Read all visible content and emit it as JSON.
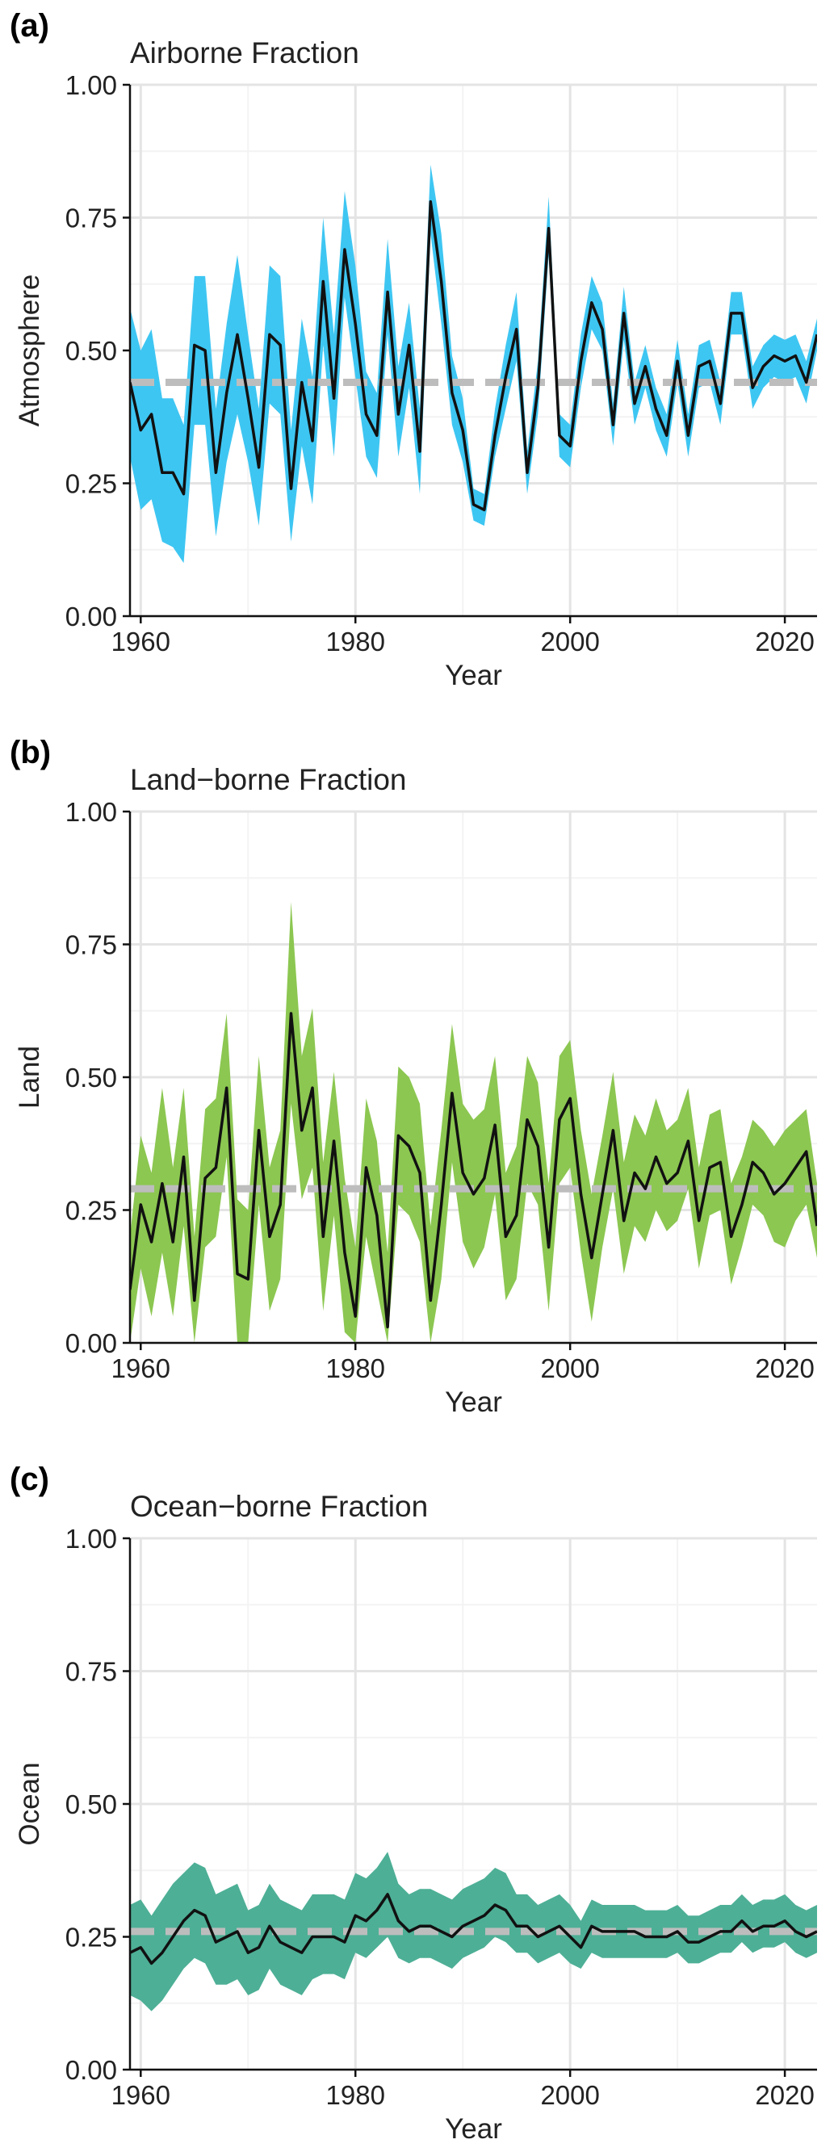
{
  "chart_data": [
    {
      "type": "line",
      "panel_label": "(a)",
      "title": "Airborne Fraction",
      "xlabel": "Year",
      "ylabel": "Atmosphere",
      "xlim": [
        1959,
        2023
      ],
      "ylim": [
        0,
        1
      ],
      "xticks": [
        1960,
        1980,
        2000,
        2020
      ],
      "yticks": [
        "0.00",
        "0.25",
        "0.50",
        "0.75",
        "1.00"
      ],
      "grid": true,
      "band_color": "#3ec6f2",
      "line_color": "#111111",
      "mean_line": 0.44,
      "mean_color": "#bdbdbd",
      "x": [
        1959,
        1960,
        1961,
        1962,
        1963,
        1964,
        1965,
        1966,
        1967,
        1968,
        1969,
        1970,
        1971,
        1972,
        1973,
        1974,
        1975,
        1976,
        1977,
        1978,
        1979,
        1980,
        1981,
        1982,
        1983,
        1984,
        1985,
        1986,
        1987,
        1988,
        1989,
        1990,
        1991,
        1992,
        1993,
        1994,
        1995,
        1996,
        1997,
        1998,
        1999,
        2000,
        2001,
        2002,
        2003,
        2004,
        2005,
        2006,
        2007,
        2008,
        2009,
        2010,
        2011,
        2012,
        2013,
        2014,
        2015,
        2016,
        2017,
        2018,
        2019,
        2020,
        2021,
        2022,
        2023
      ],
      "values": [
        0.44,
        0.35,
        0.38,
        0.27,
        0.27,
        0.23,
        0.51,
        0.5,
        0.27,
        0.42,
        0.53,
        0.41,
        0.28,
        0.53,
        0.51,
        0.24,
        0.44,
        0.33,
        0.63,
        0.41,
        0.69,
        0.55,
        0.38,
        0.34,
        0.61,
        0.38,
        0.51,
        0.31,
        0.78,
        0.63,
        0.42,
        0.35,
        0.21,
        0.2,
        0.34,
        0.45,
        0.54,
        0.27,
        0.43,
        0.73,
        0.34,
        0.32,
        0.48,
        0.59,
        0.54,
        0.36,
        0.57,
        0.4,
        0.47,
        0.39,
        0.34,
        0.48,
        0.34,
        0.47,
        0.48,
        0.4,
        0.57,
        0.57,
        0.43,
        0.47,
        0.49,
        0.48,
        0.49,
        0.44,
        0.53
      ],
      "lower": [
        0.3,
        0.2,
        0.22,
        0.14,
        0.13,
        0.1,
        0.36,
        0.36,
        0.15,
        0.29,
        0.38,
        0.29,
        0.17,
        0.4,
        0.38,
        0.14,
        0.32,
        0.21,
        0.51,
        0.3,
        0.6,
        0.45,
        0.3,
        0.26,
        0.53,
        0.3,
        0.43,
        0.23,
        0.72,
        0.55,
        0.36,
        0.29,
        0.18,
        0.17,
        0.3,
        0.39,
        0.48,
        0.23,
        0.38,
        0.68,
        0.3,
        0.28,
        0.43,
        0.54,
        0.5,
        0.32,
        0.52,
        0.36,
        0.43,
        0.35,
        0.3,
        0.44,
        0.3,
        0.43,
        0.44,
        0.36,
        0.53,
        0.53,
        0.39,
        0.43,
        0.45,
        0.44,
        0.45,
        0.4,
        0.5
      ],
      "upper": [
        0.58,
        0.5,
        0.54,
        0.41,
        0.41,
        0.36,
        0.64,
        0.64,
        0.39,
        0.55,
        0.68,
        0.53,
        0.39,
        0.66,
        0.64,
        0.35,
        0.56,
        0.45,
        0.75,
        0.53,
        0.8,
        0.66,
        0.46,
        0.42,
        0.71,
        0.47,
        0.59,
        0.39,
        0.85,
        0.72,
        0.49,
        0.41,
        0.24,
        0.23,
        0.39,
        0.51,
        0.61,
        0.31,
        0.48,
        0.79,
        0.38,
        0.36,
        0.53,
        0.64,
        0.59,
        0.4,
        0.62,
        0.44,
        0.51,
        0.43,
        0.38,
        0.52,
        0.38,
        0.51,
        0.52,
        0.44,
        0.61,
        0.61,
        0.47,
        0.51,
        0.53,
        0.52,
        0.53,
        0.48,
        0.56
      ]
    },
    {
      "type": "line",
      "panel_label": "(b)",
      "title": "Land−borne Fraction",
      "xlabel": "Year",
      "ylabel": "Land",
      "xlim": [
        1959,
        2023
      ],
      "ylim": [
        0,
        1
      ],
      "xticks": [
        1960,
        1980,
        2000,
        2020
      ],
      "yticks": [
        "0.00",
        "0.25",
        "0.50",
        "0.75",
        "1.00"
      ],
      "grid": true,
      "band_color": "#8cc751",
      "line_color": "#111111",
      "mean_line": 0.29,
      "mean_color": "#bdbdbd",
      "x": [
        1959,
        1960,
        1961,
        1962,
        1963,
        1964,
        1965,
        1966,
        1967,
        1968,
        1969,
        1970,
        1971,
        1972,
        1973,
        1974,
        1975,
        1976,
        1977,
        1978,
        1979,
        1980,
        1981,
        1982,
        1983,
        1984,
        1985,
        1986,
        1987,
        1988,
        1989,
        1990,
        1991,
        1992,
        1993,
        1994,
        1995,
        1996,
        1997,
        1998,
        1999,
        2000,
        2001,
        2002,
        2003,
        2004,
        2005,
        2006,
        2007,
        2008,
        2009,
        2010,
        2011,
        2012,
        2013,
        2014,
        2015,
        2016,
        2017,
        2018,
        2019,
        2020,
        2021,
        2022,
        2023
      ],
      "values": [
        0.1,
        0.26,
        0.19,
        0.3,
        0.19,
        0.35,
        0.08,
        0.31,
        0.33,
        0.48,
        0.13,
        0.12,
        0.4,
        0.2,
        0.26,
        0.62,
        0.4,
        0.48,
        0.2,
        0.38,
        0.17,
        0.05,
        0.33,
        0.24,
        0.03,
        0.39,
        0.37,
        0.32,
        0.08,
        0.26,
        0.47,
        0.32,
        0.28,
        0.31,
        0.41,
        0.2,
        0.24,
        0.42,
        0.37,
        0.18,
        0.42,
        0.46,
        0.28,
        0.16,
        0.28,
        0.4,
        0.23,
        0.32,
        0.29,
        0.35,
        0.3,
        0.32,
        0.38,
        0.23,
        0.33,
        0.34,
        0.2,
        0.26,
        0.34,
        0.32,
        0.28,
        0.3,
        0.33,
        0.36,
        0.22
      ],
      "lower": [
        0.0,
        0.14,
        0.05,
        0.17,
        0.05,
        0.22,
        0.0,
        0.18,
        0.2,
        0.35,
        0.0,
        0.0,
        0.26,
        0.06,
        0.12,
        0.45,
        0.27,
        0.33,
        0.06,
        0.24,
        0.02,
        0.0,
        0.2,
        0.1,
        0.0,
        0.26,
        0.24,
        0.19,
        0.0,
        0.12,
        0.34,
        0.19,
        0.14,
        0.18,
        0.28,
        0.08,
        0.12,
        0.3,
        0.26,
        0.06,
        0.3,
        0.33,
        0.17,
        0.04,
        0.18,
        0.29,
        0.13,
        0.22,
        0.19,
        0.25,
        0.21,
        0.23,
        0.29,
        0.14,
        0.24,
        0.25,
        0.11,
        0.18,
        0.26,
        0.24,
        0.19,
        0.18,
        0.23,
        0.26,
        0.16
      ],
      "upper": [
        0.2,
        0.39,
        0.32,
        0.48,
        0.33,
        0.48,
        0.2,
        0.44,
        0.46,
        0.62,
        0.27,
        0.25,
        0.54,
        0.33,
        0.4,
        0.83,
        0.54,
        0.63,
        0.34,
        0.51,
        0.31,
        0.18,
        0.46,
        0.38,
        0.17,
        0.52,
        0.5,
        0.45,
        0.22,
        0.4,
        0.6,
        0.45,
        0.42,
        0.44,
        0.54,
        0.32,
        0.37,
        0.54,
        0.49,
        0.3,
        0.54,
        0.57,
        0.4,
        0.28,
        0.39,
        0.51,
        0.34,
        0.43,
        0.39,
        0.46,
        0.4,
        0.42,
        0.48,
        0.33,
        0.43,
        0.44,
        0.3,
        0.35,
        0.42,
        0.4,
        0.37,
        0.4,
        0.42,
        0.44,
        0.3
      ]
    },
    {
      "type": "line",
      "panel_label": "(c)",
      "title": "Ocean−borne Fraction",
      "xlabel": "Year",
      "ylabel": "Ocean",
      "xlim": [
        1959,
        2023
      ],
      "ylim": [
        0,
        1
      ],
      "xticks": [
        1960,
        1980,
        2000,
        2020
      ],
      "yticks": [
        "0.00",
        "0.25",
        "0.50",
        "0.75",
        "1.00"
      ],
      "grid": true,
      "band_color": "#4daf96",
      "line_color": "#111111",
      "mean_line": 0.26,
      "mean_color": "#bdbdbd",
      "x": [
        1959,
        1960,
        1961,
        1962,
        1963,
        1964,
        1965,
        1966,
        1967,
        1968,
        1969,
        1970,
        1971,
        1972,
        1973,
        1974,
        1975,
        1976,
        1977,
        1978,
        1979,
        1980,
        1981,
        1982,
        1983,
        1984,
        1985,
        1986,
        1987,
        1988,
        1989,
        1990,
        1991,
        1992,
        1993,
        1994,
        1995,
        1996,
        1997,
        1998,
        1999,
        2000,
        2001,
        2002,
        2003,
        2004,
        2005,
        2006,
        2007,
        2008,
        2009,
        2010,
        2011,
        2012,
        2013,
        2014,
        2015,
        2016,
        2017,
        2018,
        2019,
        2020,
        2021,
        2022,
        2023
      ],
      "values": [
        0.22,
        0.23,
        0.2,
        0.22,
        0.25,
        0.28,
        0.3,
        0.29,
        0.24,
        0.25,
        0.26,
        0.22,
        0.23,
        0.27,
        0.24,
        0.23,
        0.22,
        0.25,
        0.25,
        0.25,
        0.24,
        0.29,
        0.28,
        0.3,
        0.33,
        0.28,
        0.26,
        0.27,
        0.27,
        0.26,
        0.25,
        0.27,
        0.28,
        0.29,
        0.31,
        0.3,
        0.27,
        0.27,
        0.25,
        0.26,
        0.27,
        0.25,
        0.23,
        0.27,
        0.26,
        0.26,
        0.26,
        0.26,
        0.25,
        0.25,
        0.25,
        0.26,
        0.24,
        0.24,
        0.25,
        0.26,
        0.26,
        0.28,
        0.26,
        0.27,
        0.27,
        0.28,
        0.26,
        0.25,
        0.26
      ],
      "lower": [
        0.14,
        0.13,
        0.11,
        0.13,
        0.16,
        0.19,
        0.21,
        0.2,
        0.16,
        0.16,
        0.17,
        0.14,
        0.15,
        0.19,
        0.16,
        0.15,
        0.14,
        0.17,
        0.18,
        0.18,
        0.17,
        0.22,
        0.21,
        0.23,
        0.25,
        0.21,
        0.2,
        0.21,
        0.21,
        0.2,
        0.19,
        0.21,
        0.22,
        0.23,
        0.25,
        0.24,
        0.22,
        0.22,
        0.2,
        0.21,
        0.22,
        0.2,
        0.19,
        0.22,
        0.21,
        0.21,
        0.21,
        0.21,
        0.21,
        0.21,
        0.21,
        0.22,
        0.2,
        0.2,
        0.21,
        0.22,
        0.22,
        0.24,
        0.22,
        0.23,
        0.23,
        0.24,
        0.22,
        0.21,
        0.22
      ],
      "upper": [
        0.31,
        0.32,
        0.29,
        0.32,
        0.35,
        0.37,
        0.39,
        0.38,
        0.33,
        0.34,
        0.35,
        0.3,
        0.31,
        0.35,
        0.32,
        0.31,
        0.3,
        0.33,
        0.33,
        0.33,
        0.32,
        0.37,
        0.36,
        0.38,
        0.41,
        0.35,
        0.33,
        0.34,
        0.34,
        0.33,
        0.32,
        0.34,
        0.35,
        0.36,
        0.38,
        0.37,
        0.33,
        0.33,
        0.31,
        0.32,
        0.33,
        0.31,
        0.28,
        0.32,
        0.31,
        0.31,
        0.31,
        0.31,
        0.3,
        0.3,
        0.3,
        0.31,
        0.29,
        0.29,
        0.3,
        0.31,
        0.31,
        0.33,
        0.31,
        0.32,
        0.32,
        0.33,
        0.31,
        0.3,
        0.31
      ]
    }
  ]
}
